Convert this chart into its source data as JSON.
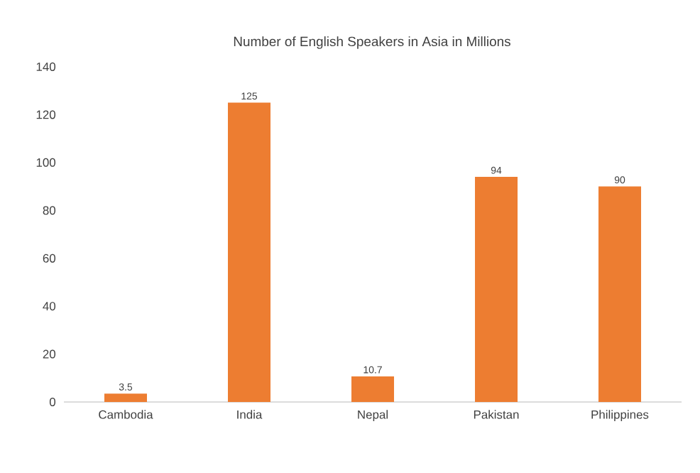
{
  "chart_data": {
    "type": "bar",
    "title": "Number of English Speakers in Asia in Millions",
    "categories": [
      "Cambodia",
      "India",
      "Nepal",
      "Pakistan",
      "Philippines"
    ],
    "values": [
      3.5,
      125,
      10.7,
      94,
      90
    ],
    "value_labels": [
      "3.5",
      "125",
      "10.7",
      "94",
      "90"
    ],
    "color": "#ed7d31",
    "ylim": [
      0,
      140
    ],
    "yticks": [
      0,
      20,
      40,
      60,
      80,
      100,
      120,
      140
    ]
  }
}
